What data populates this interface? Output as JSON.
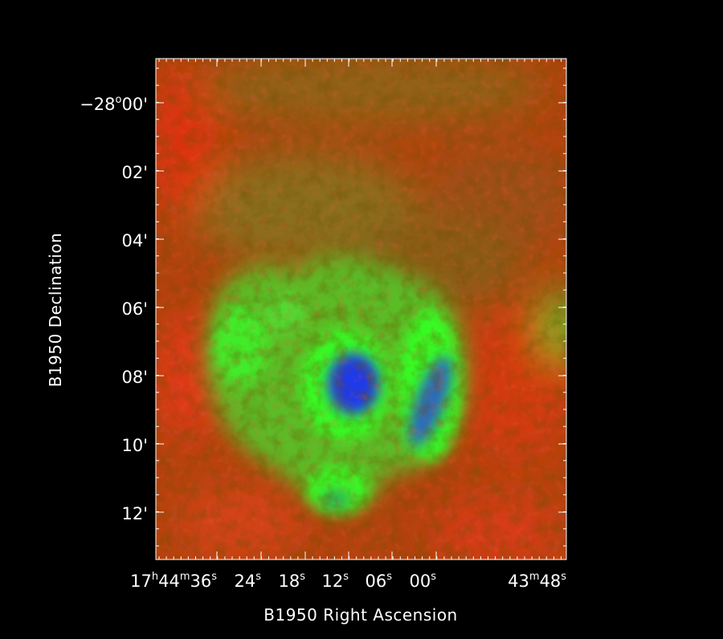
{
  "figure": {
    "x_axis_title": "B1950 Right Ascension",
    "y_axis_title": "B1950 Declination",
    "colors": {
      "background": "#000000",
      "frame": "#ffffff",
      "low_emission": "#ff2a10",
      "mid_emission": "#33ff22",
      "high_emission": "#1a2ef0"
    }
  },
  "ra_ticks": [
    {
      "name": "ra-tick-17h44m36s",
      "parts": [
        {
          "t": "17",
          "sup": false
        },
        {
          "t": "h",
          "sup": true
        },
        {
          "t": "44",
          "sup": false
        },
        {
          "t": "m",
          "sup": true
        },
        {
          "t": "36",
          "sup": false
        },
        {
          "t": "s",
          "sup": true
        }
      ]
    },
    {
      "name": "ra-tick-24s",
      "parts": [
        {
          "t": "24",
          "sup": false
        },
        {
          "t": "s",
          "sup": true
        }
      ]
    },
    {
      "name": "ra-tick-18s",
      "parts": [
        {
          "t": "18",
          "sup": false
        },
        {
          "t": "s",
          "sup": true
        }
      ]
    },
    {
      "name": "ra-tick-12s",
      "parts": [
        {
          "t": "12",
          "sup": false
        },
        {
          "t": "s",
          "sup": true
        }
      ]
    },
    {
      "name": "ra-tick-06s",
      "parts": [
        {
          "t": "06",
          "sup": false
        },
        {
          "t": "s",
          "sup": true
        }
      ]
    },
    {
      "name": "ra-tick-00s",
      "parts": [
        {
          "t": "00",
          "sup": false
        },
        {
          "t": "s",
          "sup": true
        }
      ]
    },
    {
      "name": "ra-tick-43m48s",
      "parts": [
        {
          "t": "43",
          "sup": false
        },
        {
          "t": "m",
          "sup": true
        },
        {
          "t": "48",
          "sup": false
        },
        {
          "t": "s",
          "sup": true
        }
      ]
    }
  ],
  "dec_ticks": [
    {
      "name": "dec-tick-minus28d00m",
      "parts": [
        {
          "t": "−28",
          "sup": false
        },
        {
          "t": "o",
          "sup": true
        },
        {
          "t": "00'",
          "sup": false
        }
      ]
    },
    {
      "name": "dec-tick-02m",
      "parts": [
        {
          "t": "02'",
          "sup": false
        }
      ]
    },
    {
      "name": "dec-tick-04m",
      "parts": [
        {
          "t": "04'",
          "sup": false
        }
      ]
    },
    {
      "name": "dec-tick-06m",
      "parts": [
        {
          "t": "06'",
          "sup": false
        }
      ]
    },
    {
      "name": "dec-tick-08m",
      "parts": [
        {
          "t": "08'",
          "sup": false
        }
      ]
    },
    {
      "name": "dec-tick-10m",
      "parts": [
        {
          "t": "10'",
          "sup": false
        }
      ]
    },
    {
      "name": "dec-tick-12m",
      "parts": [
        {
          "t": "12'",
          "sup": false
        }
      ]
    }
  ]
}
